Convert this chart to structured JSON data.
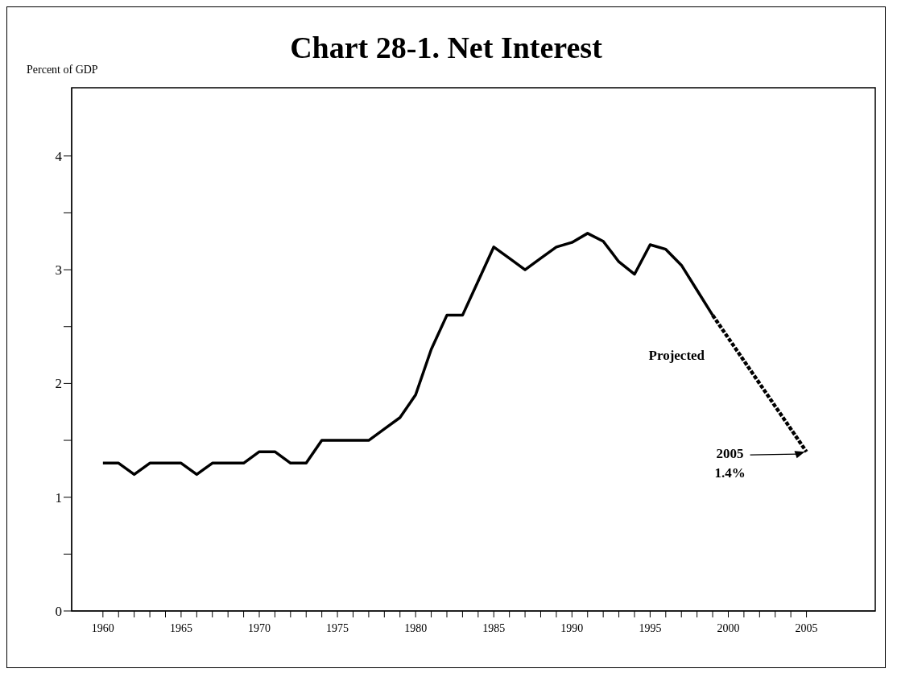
{
  "chart_data": {
    "type": "line",
    "title": "Chart 28-1. Net Interest",
    "ylabel": "Percent of GDP",
    "series": [
      {
        "color": "#000000",
        "line_style": "solid",
        "x": [
          1960,
          1961,
          1962,
          1963,
          1964,
          1965,
          1966,
          1967,
          1968,
          1969,
          1970,
          1971,
          1972,
          1973,
          1974,
          1975,
          1976,
          1977,
          1978,
          1979,
          1980,
          1981,
          1982,
          1983,
          1984,
          1985,
          1986,
          1987,
          1988,
          1989,
          1990,
          1991,
          1992,
          1993,
          1994,
          1995,
          1996,
          1997,
          1998,
          1999
        ],
        "values": [
          1.3,
          1.3,
          1.2,
          1.3,
          1.3,
          1.3,
          1.2,
          1.3,
          1.3,
          1.3,
          1.4,
          1.4,
          1.3,
          1.3,
          1.5,
          1.5,
          1.5,
          1.5,
          1.6,
          1.7,
          1.9,
          2.3,
          2.6,
          2.6,
          2.9,
          3.2,
          3.1,
          3.0,
          3.1,
          3.2,
          3.24,
          3.32,
          3.25,
          3.07,
          2.96,
          3.22,
          3.18,
          3.04,
          2.82,
          2.6
        ]
      },
      {
        "color": "#000000",
        "line_style": "dashed",
        "x": [
          1999,
          2000,
          2001,
          2002,
          2003,
          2004,
          2005
        ],
        "values": [
          2.6,
          2.4,
          2.2,
          2.0,
          1.8,
          1.6,
          1.4
        ]
      }
    ],
    "annotations": [
      "Projected",
      "2005\n1.4%"
    ],
    "xlim": [
      1958,
      2009.4
    ],
    "xticks": [
      1960,
      {
        "value": 1961,
        "label": null
      },
      {
        "value": 1962,
        "label": null
      },
      {
        "value": 1963,
        "label": null
      },
      {
        "value": 1964,
        "label": null
      },
      1965,
      {
        "value": 1966,
        "label": null
      },
      {
        "value": 1967,
        "label": null
      },
      {
        "value": 1968,
        "label": null
      },
      {
        "value": 1969,
        "label": null
      },
      1970,
      {
        "value": 1971,
        "label": null
      },
      {
        "value": 1972,
        "label": null
      },
      {
        "value": 1973,
        "label": null
      },
      {
        "value": 1974,
        "label": null
      },
      1975,
      {
        "value": 1976,
        "label": null
      },
      {
        "value": 1977,
        "label": null
      },
      {
        "value": 1978,
        "label": null
      },
      {
        "value": 1979,
        "label": null
      },
      1980,
      {
        "value": 1981,
        "label": null
      },
      {
        "value": 1982,
        "label": null
      },
      {
        "value": 1983,
        "label": null
      },
      {
        "value": 1984,
        "label": null
      },
      1985,
      {
        "value": 1986,
        "label": null
      },
      {
        "value": 1987,
        "label": null
      },
      {
        "value": 1988,
        "label": null
      },
      {
        "value": 1989,
        "label": null
      },
      1990,
      {
        "value": 1991,
        "label": null
      },
      {
        "value": 1992,
        "label": null
      },
      {
        "value": 1993,
        "label": null
      },
      {
        "value": 1994,
        "label": null
      },
      1995,
      {
        "value": 1996,
        "label": null
      },
      {
        "value": 1997,
        "label": null
      },
      {
        "value": 1998,
        "label": null
      },
      {
        "value": 1999,
        "label": null
      },
      2000,
      {
        "value": 2001,
        "label": null
      },
      {
        "value": 2002,
        "label": null
      },
      {
        "value": 2003,
        "label": null
      },
      {
        "value": 2004,
        "label": null
      },
      2005
    ],
    "ylim": [
      0,
      4.6
    ],
    "yticks": [
      0,
      {
        "value": 0.5,
        "label": null
      },
      1,
      {
        "value": 1.5,
        "label": null
      },
      2,
      {
        "value": 2.5,
        "label": null
      },
      3,
      {
        "value": 3.5,
        "label": null
      },
      4
    ],
    "grid": false,
    "marker": "none"
  }
}
